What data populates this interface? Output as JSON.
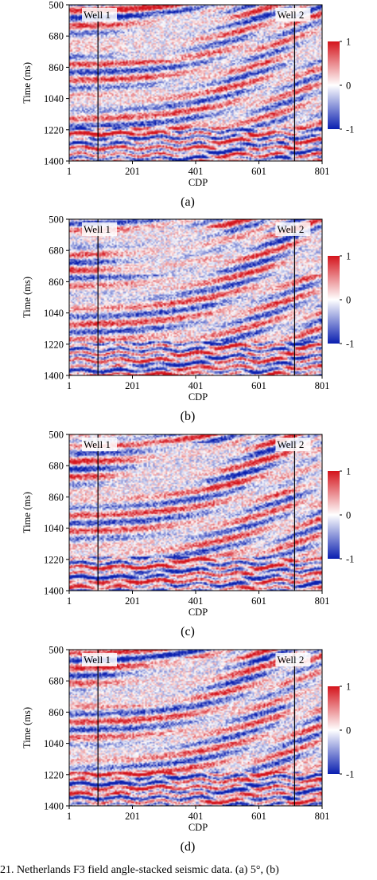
{
  "chart_data": [
    {
      "type": "heatmap",
      "label": "(a)",
      "xlabel": "CDP",
      "ylabel": "Time (ms)",
      "xticks": [
        "1",
        "201",
        "401",
        "601",
        "801"
      ],
      "yticks": [
        "500",
        "680",
        "860",
        "1040",
        "1220",
        "1400"
      ],
      "xlim": [
        1,
        801
      ],
      "ylim": [
        500,
        1400
      ],
      "colorbar": {
        "ticks": [
          "1",
          "0",
          "-1"
        ],
        "range": [
          -1,
          1
        ],
        "colors": [
          "#0a1fb0",
          "#ffffff",
          "#d4141c"
        ]
      },
      "wells": [
        {
          "name": "Well 1",
          "cdp": 92
        },
        {
          "name": "Well 2",
          "cdp": 714
        }
      ]
    },
    {
      "type": "heatmap",
      "label": "(b)",
      "xlabel": "CDP",
      "ylabel": "Time (ms)",
      "xticks": [
        "1",
        "201",
        "401",
        "601",
        "801"
      ],
      "yticks": [
        "500",
        "680",
        "860",
        "1040",
        "1220",
        "1400"
      ],
      "xlim": [
        1,
        801
      ],
      "ylim": [
        500,
        1400
      ],
      "colorbar": {
        "ticks": [
          "1",
          "0",
          "-1"
        ],
        "range": [
          -1,
          1
        ],
        "colors": [
          "#0a1fb0",
          "#ffffff",
          "#d4141c"
        ]
      },
      "wells": [
        {
          "name": "Well 1",
          "cdp": 92
        },
        {
          "name": "Well 2",
          "cdp": 714
        }
      ]
    },
    {
      "type": "heatmap",
      "label": "(c)",
      "xlabel": "CDP",
      "ylabel": "Time (ms)",
      "xticks": [
        "1",
        "201",
        "401",
        "601",
        "801"
      ],
      "yticks": [
        "500",
        "680",
        "860",
        "1040",
        "1220",
        "1400"
      ],
      "xlim": [
        1,
        801
      ],
      "ylim": [
        500,
        1400
      ],
      "colorbar": {
        "ticks": [
          "1",
          "0",
          "-1"
        ],
        "range": [
          -1,
          1
        ],
        "colors": [
          "#0a1fb0",
          "#ffffff",
          "#d4141c"
        ]
      },
      "wells": [
        {
          "name": "Well 1",
          "cdp": 92
        },
        {
          "name": "Well 2",
          "cdp": 714
        }
      ]
    },
    {
      "type": "heatmap",
      "label": "(d)",
      "xlabel": "CDP",
      "ylabel": "Time (ms)",
      "xticks": [
        "1",
        "201",
        "401",
        "601",
        "801"
      ],
      "yticks": [
        "500",
        "680",
        "860",
        "1040",
        "1220",
        "1400"
      ],
      "xlim": [
        1,
        801
      ],
      "ylim": [
        500,
        1400
      ],
      "colorbar": {
        "ticks": [
          "1",
          "0",
          "-1"
        ],
        "range": [
          -1,
          1
        ],
        "colors": [
          "#0a1fb0",
          "#ffffff",
          "#d4141c"
        ]
      },
      "wells": [
        {
          "name": "Well 1",
          "cdp": 92
        },
        {
          "name": "Well 2",
          "cdp": 714
        }
      ]
    }
  ],
  "caption": "21.   Netherlands F3 field angle-stacked seismic data. (a) 5°, (b)"
}
